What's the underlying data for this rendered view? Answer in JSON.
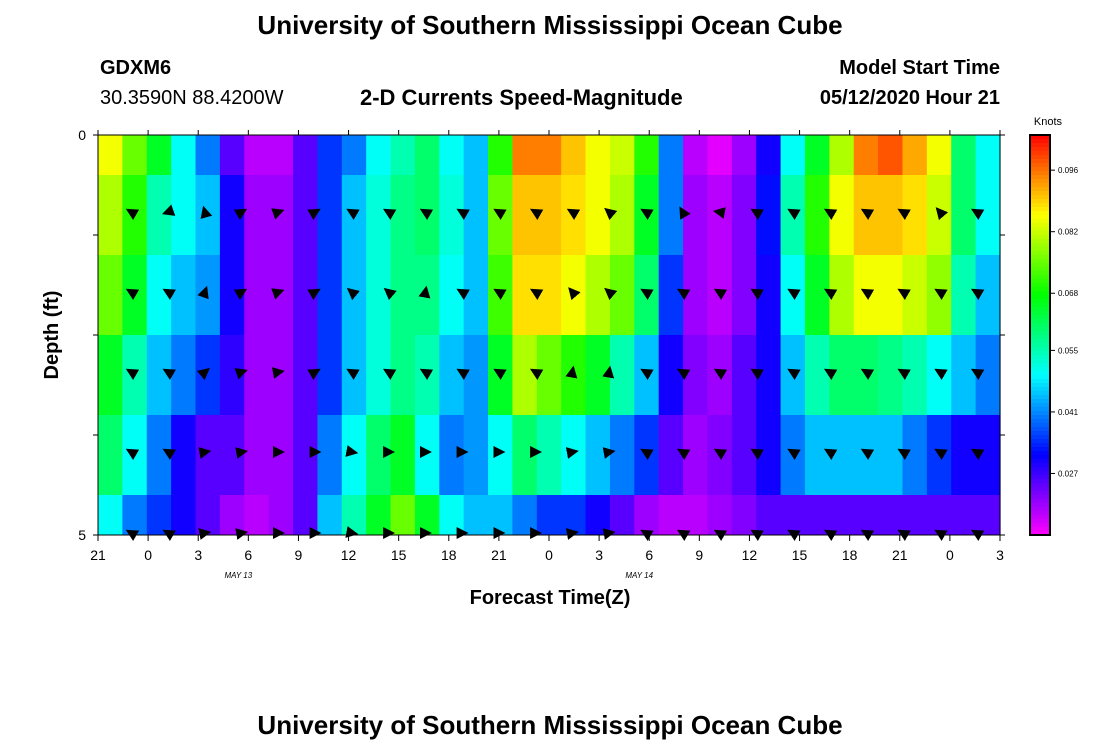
{
  "header": {
    "title": "University of Southern Mississippi Ocean Cube",
    "station_id": "GDXM6",
    "location": "30.3590N 88.4200W",
    "subtitle": "2-D Currents Speed-Magnitude",
    "model_start_label": "Model Start Time",
    "model_start_value": "05/12/2020 Hour 21"
  },
  "footer": {
    "title": "University of Southern Mississippi Ocean Cube"
  },
  "chart_data": {
    "type": "heatmap",
    "xlabel": "Forecast Time(Z)",
    "ylabel": "Depth (ft)",
    "ylim": [
      0,
      5
    ],
    "x_tick_labels": [
      "21",
      "0",
      "3",
      "6",
      "9",
      "12",
      "15",
      "18",
      "21",
      "0",
      "3",
      "6",
      "9",
      "12",
      "15",
      "18",
      "21",
      "0",
      "3"
    ],
    "date_labels": [
      {
        "text": "MAY  13",
        "hour_index": 9
      },
      {
        "text": "MAY  14",
        "hour_index": 33
      }
    ],
    "y_tick_labels": [
      "0",
      "5"
    ],
    "colorbar": {
      "unit": "Knots",
      "min": 0.013,
      "max": 0.104,
      "tick_labels": [
        "0.096",
        "0.082",
        "0.068",
        "0.055",
        "0.041",
        "0.027"
      ],
      "tick_values": [
        0.096,
        0.082,
        0.068,
        0.055,
        0.041,
        0.027
      ]
    },
    "depth_bands": [
      {
        "name": "band-0.0-0.5ft",
        "depth_start": 0.0,
        "depth_end": 0.5,
        "values": [
          0.085,
          0.075,
          0.065,
          0.05,
          0.04,
          0.025,
          0.018,
          0.018,
          0.025,
          0.035,
          0.04,
          0.05,
          0.055,
          0.06,
          0.05,
          0.045,
          0.07,
          0.095,
          0.095,
          0.09,
          0.085,
          0.082,
          0.07,
          0.04,
          0.018,
          0.015,
          0.02,
          0.03,
          0.05,
          0.065,
          0.08,
          0.095,
          0.098,
          0.092,
          0.085,
          0.06,
          0.05
        ]
      },
      {
        "name": "band-0.5-1.5ft",
        "depth_start": 0.5,
        "depth_end": 1.5,
        "values": [
          0.08,
          0.07,
          0.055,
          0.05,
          0.045,
          0.03,
          0.02,
          0.02,
          0.025,
          0.035,
          0.045,
          0.052,
          0.058,
          0.06,
          0.052,
          0.045,
          0.075,
          0.09,
          0.09,
          0.088,
          0.085,
          0.08,
          0.065,
          0.04,
          0.02,
          0.018,
          0.022,
          0.032,
          0.055,
          0.07,
          0.085,
          0.09,
          0.09,
          0.088,
          0.082,
          0.06,
          0.05
        ]
      },
      {
        "name": "band-1.5-2.5ft",
        "depth_start": 1.5,
        "depth_end": 2.5,
        "values": [
          0.075,
          0.065,
          0.05,
          0.045,
          0.042,
          0.03,
          0.02,
          0.02,
          0.025,
          0.035,
          0.045,
          0.052,
          0.058,
          0.058,
          0.05,
          0.045,
          0.072,
          0.088,
          0.088,
          0.085,
          0.08,
          0.075,
          0.06,
          0.035,
          0.02,
          0.018,
          0.022,
          0.03,
          0.05,
          0.065,
          0.08,
          0.085,
          0.085,
          0.082,
          0.078,
          0.055,
          0.045
        ]
      },
      {
        "name": "band-2.5-3.5ft",
        "depth_start": 2.5,
        "depth_end": 3.5,
        "values": [
          0.065,
          0.055,
          0.045,
          0.04,
          0.035,
          0.028,
          0.02,
          0.02,
          0.025,
          0.035,
          0.045,
          0.052,
          0.058,
          0.055,
          0.045,
          0.042,
          0.065,
          0.08,
          0.075,
          0.07,
          0.065,
          0.055,
          0.045,
          0.03,
          0.022,
          0.02,
          0.025,
          0.03,
          0.045,
          0.055,
          0.06,
          0.06,
          0.058,
          0.055,
          0.05,
          0.045,
          0.04
        ]
      },
      {
        "name": "band-3.5-4.5ft",
        "depth_start": 3.5,
        "depth_end": 4.5,
        "values": [
          0.06,
          0.05,
          0.04,
          0.03,
          0.025,
          0.025,
          0.02,
          0.02,
          0.025,
          0.04,
          0.05,
          0.06,
          0.065,
          0.05,
          0.04,
          0.042,
          0.05,
          0.06,
          0.055,
          0.05,
          0.045,
          0.04,
          0.035,
          0.025,
          0.02,
          0.022,
          0.025,
          0.03,
          0.04,
          0.045,
          0.045,
          0.045,
          0.045,
          0.04,
          0.035,
          0.03,
          0.03
        ]
      },
      {
        "name": "band-4.5-5.0ft",
        "depth_start": 4.5,
        "depth_end": 5.0,
        "values": [
          0.05,
          0.04,
          0.035,
          0.03,
          0.025,
          0.02,
          0.018,
          0.02,
          0.025,
          0.045,
          0.055,
          0.065,
          0.075,
          0.065,
          0.05,
          0.045,
          0.045,
          0.04,
          0.035,
          0.035,
          0.03,
          0.025,
          0.02,
          0.018,
          0.018,
          0.02,
          0.022,
          0.025,
          0.025,
          0.025,
          0.025,
          0.025,
          0.025,
          0.025,
          0.025,
          0.025,
          0.025
        ]
      }
    ],
    "arrow_depths": [
      1,
      2,
      3,
      4,
      5
    ],
    "arrow_hour_interval": 2,
    "arrow_directions_deg": [
      [
        300,
        250,
        345,
        60,
        70,
        60,
        300,
        300,
        300,
        300,
        300,
        300,
        300,
        310,
        300,
        330,
        280,
        300,
        300,
        300,
        300,
        300,
        320,
        300
      ],
      [
        300,
        300,
        20,
        60,
        70,
        60,
        310,
        310,
        10,
        300,
        300,
        300,
        320,
        310,
        300,
        300,
        300,
        300,
        300,
        300,
        300,
        300,
        300,
        300
      ],
      [
        300,
        300,
        50,
        70,
        80,
        60,
        300,
        300,
        300,
        300,
        300,
        300,
        10,
        10,
        300,
        300,
        300,
        300,
        300,
        300,
        300,
        300,
        300,
        300
      ],
      [
        300,
        300,
        80,
        80,
        90,
        90,
        100,
        90,
        90,
        90,
        90,
        90,
        80,
        80,
        300,
        300,
        300,
        300,
        300,
        300,
        300,
        300,
        300,
        300
      ],
      [
        300,
        300,
        80,
        80,
        90,
        90,
        100,
        90,
        90,
        90,
        90,
        90,
        80,
        80,
        300,
        300,
        300,
        300,
        300,
        300,
        300,
        300,
        300,
        300
      ]
    ]
  }
}
